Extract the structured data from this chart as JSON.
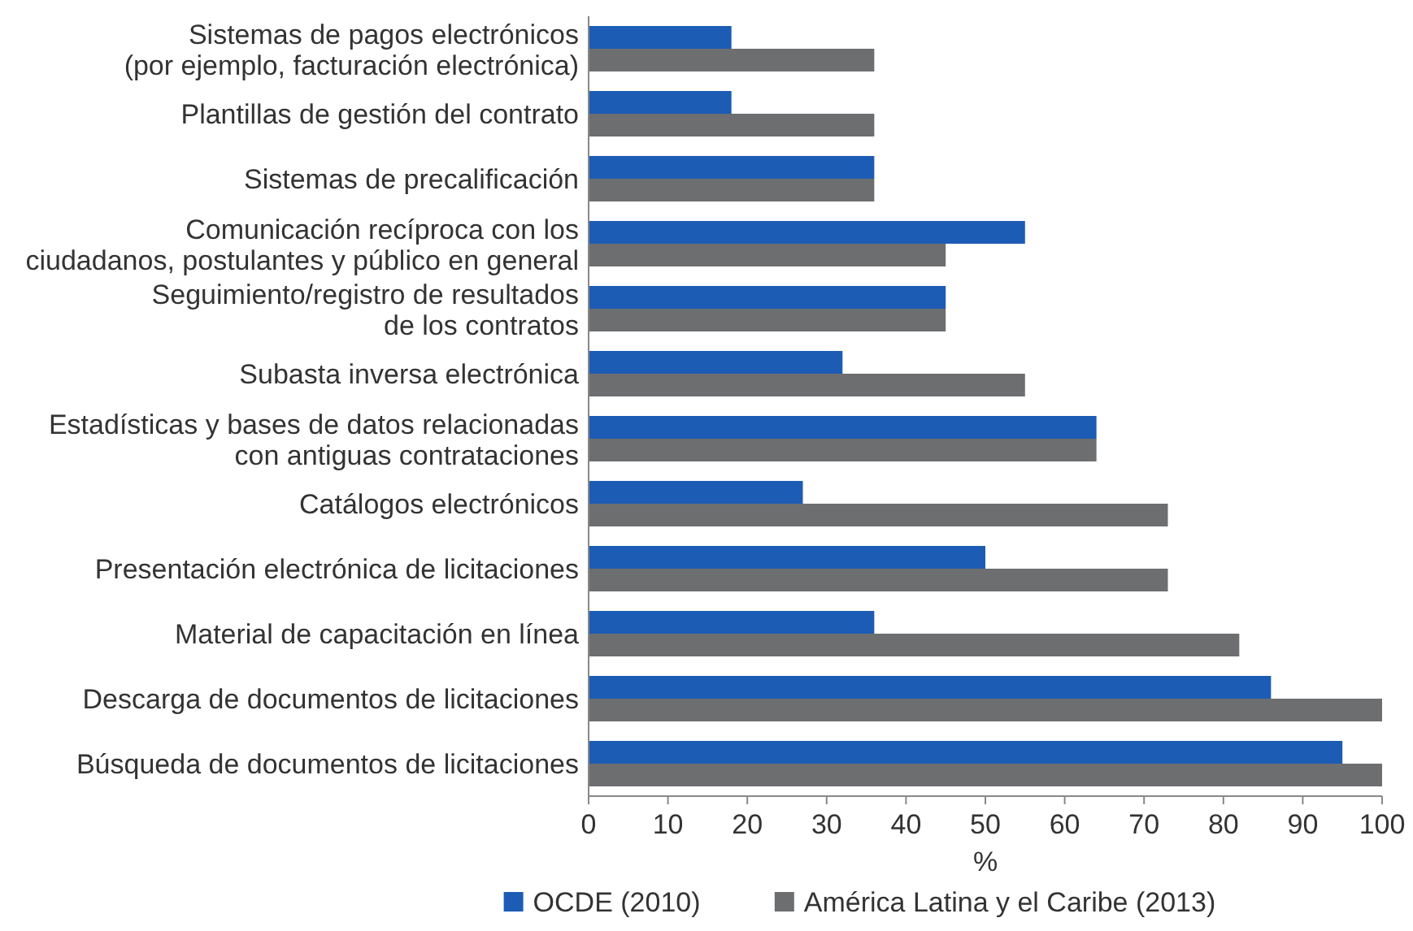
{
  "chart_data": {
    "type": "bar",
    "orientation": "horizontal",
    "xlabel": "%",
    "categories": [
      "Sistemas de pagos electrónicos\n(por ejemplo, facturación electrónica)",
      "Plantillas de gestión del contrato",
      "Sistemas de precalificación",
      "Comunicación recíproca con los\nciudadanos, postulantes y público en general",
      "Seguimiento/registro de resultados\nde los contratos",
      "Subasta inversa electrónica",
      "Estadísticas y bases de datos relacionadas\ncon antiguas contrataciones",
      "Catálogos electrónicos",
      "Presentación electrónica de licitaciones",
      "Material de capacitación en línea",
      "Descarga de documentos de licitaciones",
      "Búsqueda de documentos de licitaciones"
    ],
    "series": [
      {
        "name": "OCDE (2010)",
        "color": "#1c5cb4",
        "values": [
          18,
          18,
          36,
          55,
          45,
          32,
          64,
          27,
          50,
          36,
          86,
          95
        ]
      },
      {
        "name": "América Latina y el Caribe (2013)",
        "color": "#6d6e70",
        "values": [
          36,
          36,
          36,
          45,
          45,
          55,
          64,
          73,
          73,
          82,
          100,
          100
        ]
      }
    ],
    "xlim": [
      0,
      100
    ],
    "xticks": [
      0,
      10,
      20,
      30,
      40,
      50,
      60,
      70,
      80,
      90,
      100
    ],
    "grid": false,
    "legend": "bottom"
  }
}
